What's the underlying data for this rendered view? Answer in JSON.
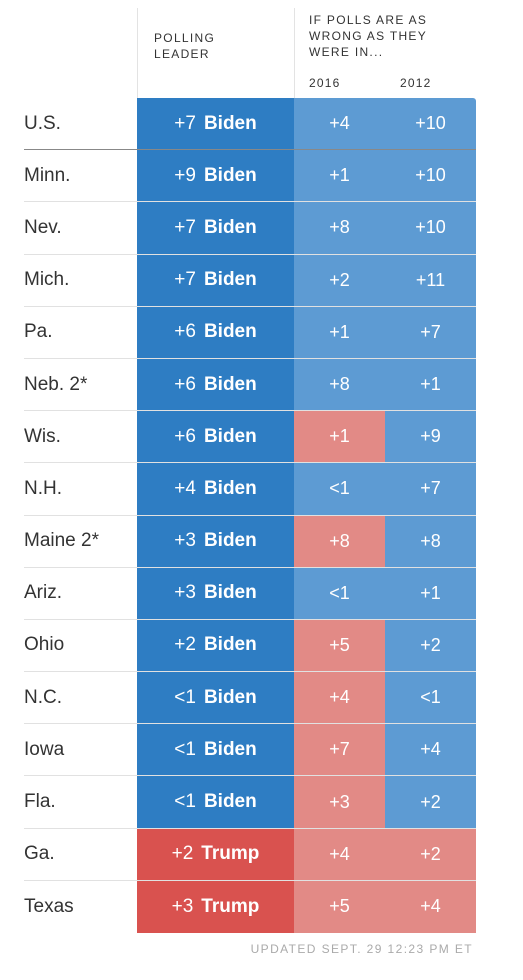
{
  "header": {
    "polling_leader": "POLLING\nLEADER",
    "if_wrong": "IF POLLS ARE AS\nWRONG AS THEY\nWERE IN...",
    "year_2016": "2016",
    "year_2012": "2012"
  },
  "colors": {
    "biden_dark": "#2e7dc3",
    "biden_light": "#5d9bd3",
    "trump_dark": "#d9524f",
    "trump_light": "#e28a86"
  },
  "chart_data": {
    "type": "table",
    "columns": [
      "POLLING LEADER",
      "2016",
      "2012"
    ],
    "rows": [
      {
        "state": "U.S.",
        "margin": "+7",
        "leader": "Biden",
        "s2016": "+4",
        "p2016": "Biden",
        "s2012": "+10",
        "p2012": "Biden"
      },
      {
        "state": "Minn.",
        "margin": "+9",
        "leader": "Biden",
        "s2016": "+1",
        "p2016": "Biden",
        "s2012": "+10",
        "p2012": "Biden"
      },
      {
        "state": "Nev.",
        "margin": "+7",
        "leader": "Biden",
        "s2016": "+8",
        "p2016": "Biden",
        "s2012": "+10",
        "p2012": "Biden"
      },
      {
        "state": "Mich.",
        "margin": "+7",
        "leader": "Biden",
        "s2016": "+2",
        "p2016": "Biden",
        "s2012": "+11",
        "p2012": "Biden"
      },
      {
        "state": "Pa.",
        "margin": "+6",
        "leader": "Biden",
        "s2016": "+1",
        "p2016": "Biden",
        "s2012": "+7",
        "p2012": "Biden"
      },
      {
        "state": "Neb. 2*",
        "margin": "+6",
        "leader": "Biden",
        "s2016": "+8",
        "p2016": "Biden",
        "s2012": "+1",
        "p2012": "Biden"
      },
      {
        "state": "Wis.",
        "margin": "+6",
        "leader": "Biden",
        "s2016": "+1",
        "p2016": "Trump",
        "s2012": "+9",
        "p2012": "Biden"
      },
      {
        "state": "N.H.",
        "margin": "+4",
        "leader": "Biden",
        "s2016": "<1",
        "p2016": "Biden",
        "s2012": "+7",
        "p2012": "Biden"
      },
      {
        "state": "Maine 2*",
        "margin": "+3",
        "leader": "Biden",
        "s2016": "+8",
        "p2016": "Trump",
        "s2012": "+8",
        "p2012": "Biden"
      },
      {
        "state": "Ariz.",
        "margin": "+3",
        "leader": "Biden",
        "s2016": "<1",
        "p2016": "Biden",
        "s2012": "+1",
        "p2012": "Biden"
      },
      {
        "state": "Ohio",
        "margin": "+2",
        "leader": "Biden",
        "s2016": "+5",
        "p2016": "Trump",
        "s2012": "+2",
        "p2012": "Biden"
      },
      {
        "state": "N.C.",
        "margin": "<1",
        "leader": "Biden",
        "s2016": "+4",
        "p2016": "Trump",
        "s2012": "<1",
        "p2012": "Biden"
      },
      {
        "state": "Iowa",
        "margin": "<1",
        "leader": "Biden",
        "s2016": "+7",
        "p2016": "Trump",
        "s2012": "+4",
        "p2012": "Biden"
      },
      {
        "state": "Fla.",
        "margin": "<1",
        "leader": "Biden",
        "s2016": "+3",
        "p2016": "Trump",
        "s2012": "+2",
        "p2012": "Biden"
      },
      {
        "state": "Ga.",
        "margin": "+2",
        "leader": "Trump",
        "s2016": "+4",
        "p2016": "Trump",
        "s2012": "+2",
        "p2012": "Trump"
      },
      {
        "state": "Texas",
        "margin": "+3",
        "leader": "Trump",
        "s2016": "+5",
        "p2016": "Trump",
        "s2012": "+4",
        "p2012": "Trump"
      }
    ]
  },
  "footer": "UPDATED SEPT. 29 12:23 PM ET"
}
